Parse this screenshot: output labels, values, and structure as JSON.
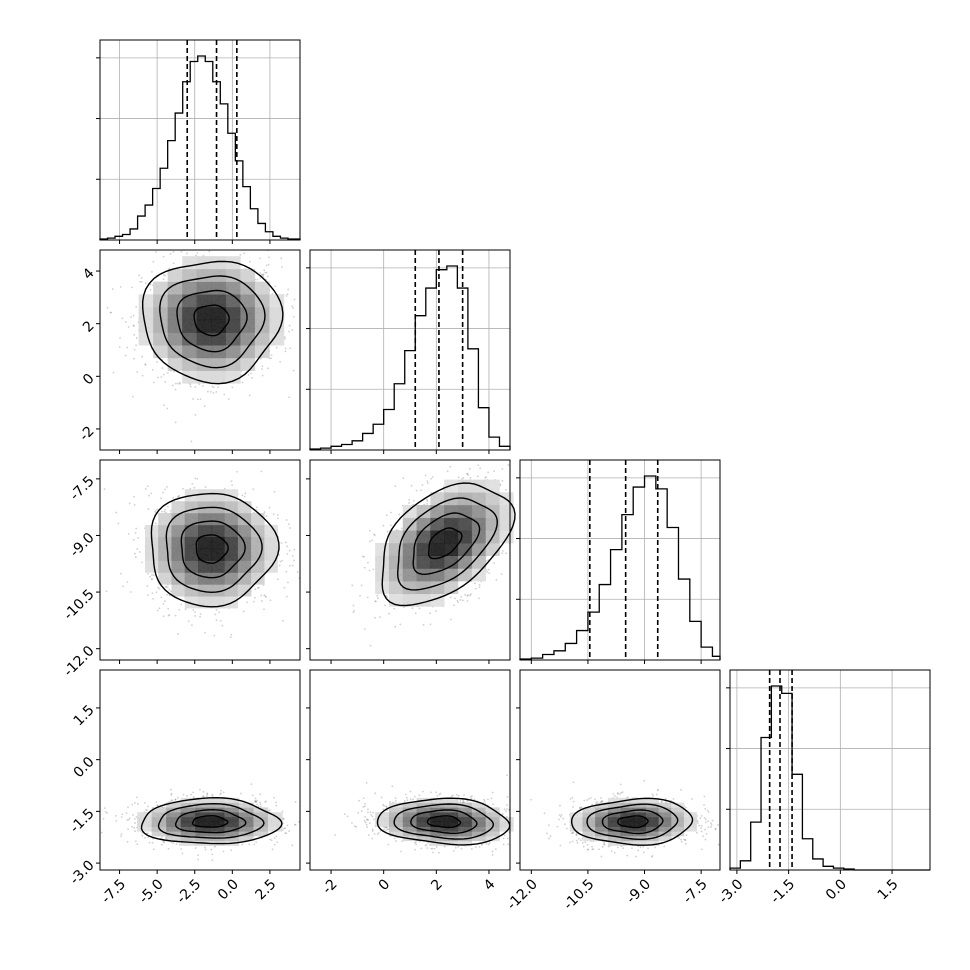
{
  "chart_data": {
    "type": "corner",
    "title": "",
    "colors": {
      "line": "#000000",
      "grid": "#b0b0b0",
      "shade_dark": "#000000",
      "shade_light": "#ffffff",
      "scatter": "#777777"
    },
    "parameters": [
      {
        "xlim": [
          -8.8,
          4.5
        ],
        "ylim": [
          -2.8,
          4.8
        ],
        "ticks": [
          "-7.5",
          "-5.0",
          "-2.5",
          "0.0",
          "2.5"
        ],
        "tick_values": [
          -7.5,
          -5.0,
          -2.5,
          0.0,
          2.5
        ]
      },
      {
        "xlim": [
          -2.8,
          4.8
        ],
        "ylim": [
          -2.8,
          4.8
        ],
        "ticks": [
          "-2",
          "0",
          "2",
          "4"
        ],
        "tick_values": [
          -2,
          0,
          2,
          4
        ]
      },
      {
        "xlim": [
          -12.3,
          -7.0
        ],
        "ylim": [
          -12.3,
          -7.0
        ],
        "ticks": [
          "-12.0",
          "-10.5",
          "-9.0",
          "-7.5"
        ],
        "tick_values": [
          -12.0,
          -10.5,
          -9.0,
          -7.5
        ]
      },
      {
        "xlim": [
          -3.2,
          2.6
        ],
        "ylim": [
          -3.2,
          2.6
        ],
        "ticks": [
          "-3.0",
          "-1.5",
          "0.0",
          "1.5"
        ],
        "tick_values": [
          -3.0,
          -1.5,
          0.0,
          1.5
        ]
      }
    ],
    "histograms": [
      {
        "edges": [
          -8.8,
          -8.3,
          -7.8,
          -7.3,
          -6.8,
          -6.3,
          -5.8,
          -5.3,
          -4.8,
          -4.3,
          -3.8,
          -3.3,
          -2.8,
          -2.3,
          -1.8,
          -1.3,
          -0.8,
          -0.3,
          0.2,
          0.7,
          1.2,
          1.7,
          2.2,
          2.7,
          3.2,
          3.7,
          4.5
        ],
        "counts": [
          0.005,
          0.01,
          0.02,
          0.03,
          0.06,
          0.13,
          0.19,
          0.28,
          0.39,
          0.54,
          0.69,
          0.86,
          0.97,
          1.0,
          0.97,
          0.86,
          0.74,
          0.58,
          0.43,
          0.29,
          0.17,
          0.09,
          0.045,
          0.02,
          0.01,
          0.005
        ],
        "quantiles": [
          -3.0,
          -1.05,
          0.3
        ]
      },
      {
        "edges": [
          -2.8,
          -2.4,
          -2.0,
          -1.6,
          -1.2,
          -0.8,
          -0.4,
          0.0,
          0.4,
          0.8,
          1.2,
          1.6,
          2.0,
          2.4,
          2.8,
          3.2,
          3.6,
          4.0,
          4.4,
          4.8
        ],
        "counts": [
          0.005,
          0.01,
          0.02,
          0.03,
          0.05,
          0.09,
          0.14,
          0.22,
          0.36,
          0.54,
          0.73,
          0.88,
          0.98,
          1.0,
          0.88,
          0.55,
          0.23,
          0.07,
          0.02
        ],
        "quantiles": [
          1.2,
          2.1,
          3.0
        ]
      },
      {
        "edges": [
          -12.3,
          -12.0,
          -11.7,
          -11.4,
          -11.1,
          -10.8,
          -10.5,
          -10.2,
          -9.9,
          -9.6,
          -9.3,
          -9.0,
          -8.7,
          -8.4,
          -8.1,
          -7.8,
          -7.5,
          -7.2,
          -7.0
        ],
        "counts": [
          0.005,
          0.01,
          0.03,
          0.05,
          0.09,
          0.16,
          0.26,
          0.41,
          0.6,
          0.79,
          0.94,
          1.0,
          0.93,
          0.72,
          0.44,
          0.21,
          0.07,
          0.02
        ],
        "quantiles": [
          -10.45,
          -9.5,
          -8.65
        ]
      },
      {
        "edges": [
          -3.2,
          -2.9,
          -2.6,
          -2.3,
          -2.0,
          -1.7,
          -1.4,
          -1.1,
          -0.8,
          -0.5,
          -0.2,
          0.1,
          0.4,
          0.7,
          1.0,
          1.3,
          1.6,
          1.9,
          2.2,
          2.6
        ],
        "counts": [
          0.01,
          0.05,
          0.26,
          0.72,
          1.0,
          0.96,
          0.52,
          0.17,
          0.06,
          0.02,
          0.01,
          0.005,
          0,
          0,
          0,
          0,
          0,
          0,
          0
        ],
        "quantiles": [
          -2.05,
          -1.75,
          -1.4
        ]
      }
    ],
    "joint": [
      {
        "row": 1,
        "col": 0,
        "mean": [
          -1.4,
          2.15
        ],
        "sd": [
          2.3,
          1.15
        ],
        "rho": 0.0
      },
      {
        "row": 2,
        "col": 0,
        "mean": [
          -1.4,
          -9.35
        ],
        "sd": [
          2.1,
          0.75
        ],
        "rho": 0.0
      },
      {
        "row": 2,
        "col": 1,
        "mean": [
          2.3,
          -9.2
        ],
        "sd": [
          1.25,
          0.8
        ],
        "rho": 0.45
      },
      {
        "row": 3,
        "col": 0,
        "mean": [
          -1.5,
          -1.8
        ],
        "sd": [
          2.3,
          0.33
        ],
        "rho": 0.0
      },
      {
        "row": 3,
        "col": 1,
        "mean": [
          2.3,
          -1.8
        ],
        "sd": [
          1.25,
          0.33
        ],
        "rho": -0.1
      },
      {
        "row": 3,
        "col": 2,
        "mean": [
          -9.3,
          -1.8
        ],
        "sd": [
          0.8,
          0.33
        ],
        "rho": 0.05
      }
    ]
  }
}
